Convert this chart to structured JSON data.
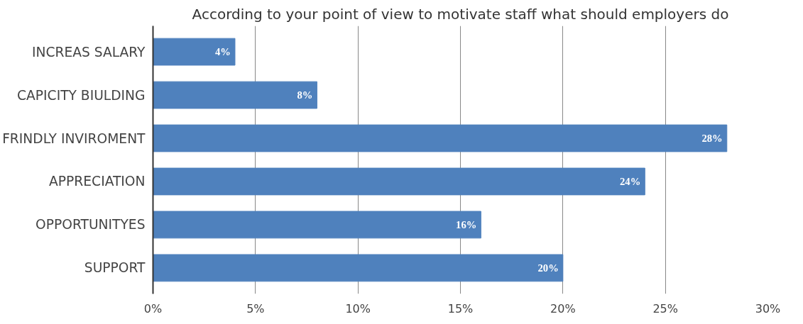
{
  "chart_data": {
    "type": "bar",
    "orientation": "horizontal",
    "title": "According to your point of view to motivate staff what should employers do",
    "categories": [
      "INCREAS SALARY",
      "CAPICITY BIULDING",
      "FRINDLY INVIROMENT",
      "APPRECIATION",
      "OPPORTUNITYES",
      "SUPPORT"
    ],
    "values": [
      4,
      8,
      28,
      24,
      16,
      20
    ],
    "value_labels": [
      "4%",
      "8%",
      "28%",
      "24%",
      "16%",
      "20%"
    ],
    "color": "#4f81bd",
    "xlim": [
      0,
      30
    ],
    "xticks": [
      {
        "value": 0,
        "label": "0%"
      },
      {
        "value": 5,
        "label": "5%"
      },
      {
        "value": 10,
        "label": "10%"
      },
      {
        "value": 15,
        "label": "15%"
      },
      {
        "value": 20,
        "label": "20%"
      },
      {
        "value": 25,
        "label": "25%"
      },
      {
        "value": 30,
        "label": "30%"
      }
    ],
    "grid": "x"
  }
}
